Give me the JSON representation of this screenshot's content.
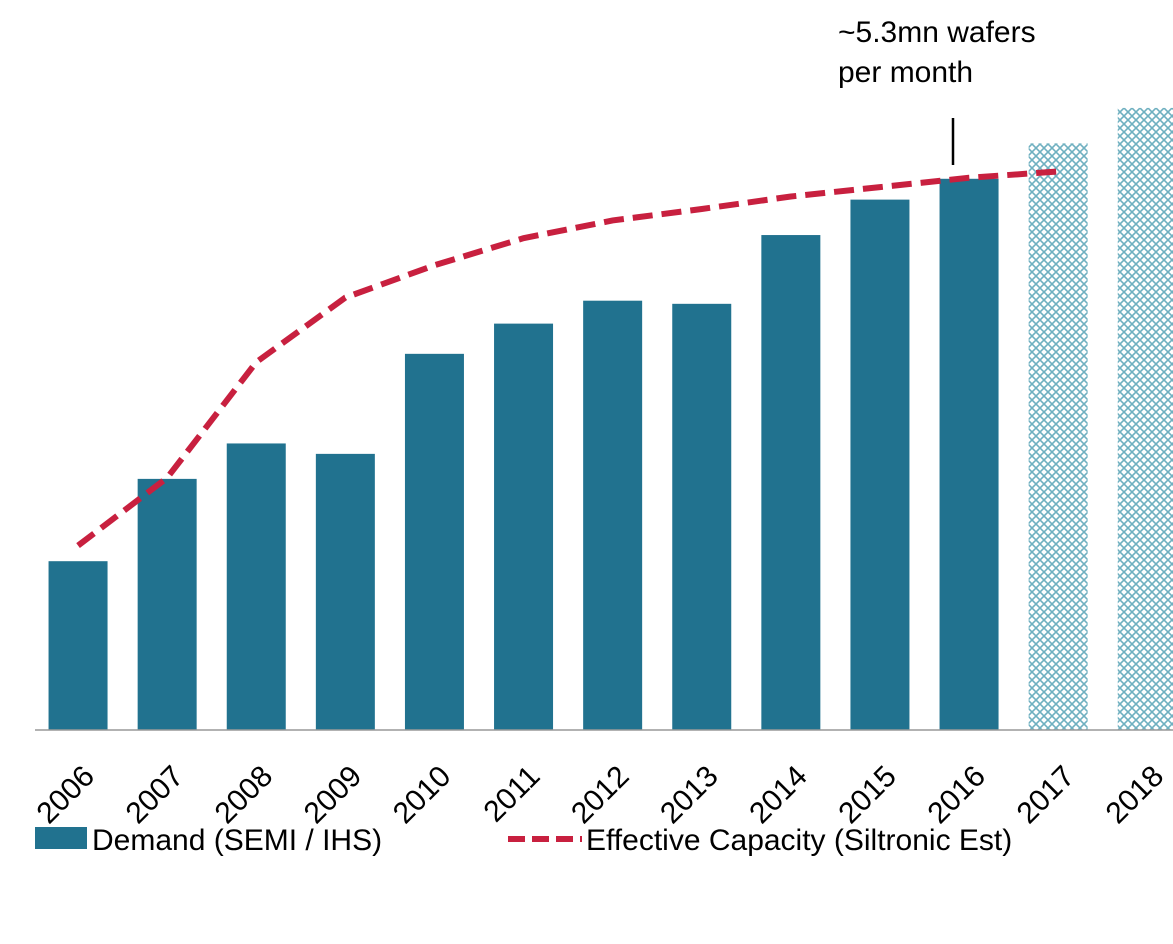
{
  "chart_data": {
    "type": "bar_line",
    "annotation": [
      "~5.3mn wafers",
      "per month"
    ],
    "categories": [
      "2006",
      "2007",
      "2008",
      "2009",
      "2010",
      "2011",
      "2012",
      "2013",
      "2014",
      "2015",
      "2016",
      "2017",
      "2018"
    ],
    "series": [
      {
        "name": "Demand (SEMI / IHS)",
        "type": "bar",
        "color": "#21728f",
        "hatch_color": "#6fb0c0",
        "hatched": [
          false,
          false,
          false,
          false,
          false,
          false,
          false,
          false,
          false,
          false,
          false,
          true,
          true
        ],
        "values": [
          1.62,
          2.41,
          2.75,
          2.65,
          3.61,
          3.9,
          4.12,
          4.09,
          4.75,
          5.09,
          5.29,
          5.63,
          5.97
        ]
      },
      {
        "name": "Effective Capacity (Siltronic Est)",
        "type": "line",
        "color": "#c8203f",
        "dashed": true,
        "values": [
          1.77,
          2.42,
          3.53,
          4.15,
          4.46,
          4.72,
          4.89,
          5.0,
          5.12,
          5.21,
          5.3,
          5.36,
          null
        ]
      }
    ],
    "ylim": [
      0,
      7
    ]
  }
}
